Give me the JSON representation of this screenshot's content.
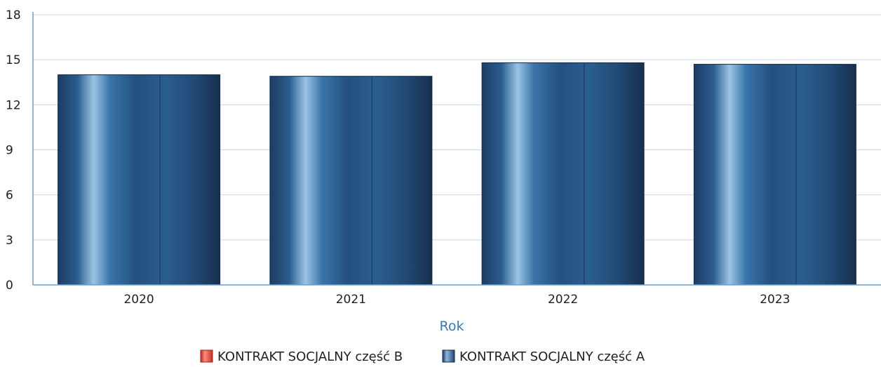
{
  "chart_data": {
    "type": "bar",
    "categories": [
      "2020",
      "2021",
      "2022",
      "2023"
    ],
    "series": [
      {
        "name": "KONTRAKT SOCJALNY część B",
        "values": [
          0,
          0,
          0,
          0
        ],
        "color": "#e8402a"
      },
      {
        "name": "KONTRAKT SOCJALNY część A",
        "values": [
          14,
          13.9,
          14.8,
          14.7
        ],
        "color": "#1f4e79"
      }
    ],
    "title": "",
    "xlabel": "Rok",
    "ylabel": "",
    "ylim": [
      0,
      18
    ],
    "yticks": [
      "0",
      "3",
      "6",
      "9",
      "12",
      "15",
      "18"
    ],
    "grid": true,
    "legend_position": "bottom",
    "colors": {
      "axis": "#6f9fc9",
      "xlabel": "#3a78b0",
      "grid": "#cfd6dd"
    }
  }
}
